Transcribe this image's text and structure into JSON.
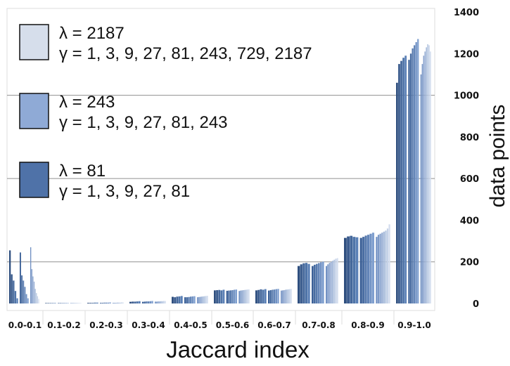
{
  "chart_data": {
    "type": "bar",
    "xlabel": "Jaccard index",
    "ylabel": "data points",
    "ylim": [
      0,
      1400
    ],
    "yticks": [
      "0",
      "200",
      "400",
      "600",
      "800",
      "1000",
      "1200",
      "1400"
    ],
    "y_axis_side": "right",
    "grid": "horizontal",
    "legend_position": "top-left",
    "categories": [
      "0.0-0.1",
      "0.1-0.2",
      "0.2-0.3",
      "0.3-0.4",
      "0.4-0.5",
      "0.5-0.6",
      "0.6-0.7",
      "0.7-0.8",
      "0.8-0.9",
      "0.9-1.0"
    ],
    "series": [
      {
        "name": "λ = 81",
        "subtitle": "γ = 1, 3, 9, 27, 81",
        "color_dark": "#2f4f7f",
        "color_light": "#5a80b6",
        "values": [
          [
            255,
            140,
            110,
            60,
            25
          ],
          [
            2,
            2,
            2,
            2,
            2
          ],
          [
            3,
            3,
            3,
            4,
            4
          ],
          [
            8,
            9,
            9,
            10,
            11
          ],
          [
            32,
            30,
            33,
            34,
            36
          ],
          [
            63,
            64,
            65,
            63,
            66
          ],
          [
            63,
            65,
            68,
            66,
            69
          ],
          [
            180,
            188,
            193,
            195,
            190
          ],
          [
            315,
            322,
            325,
            320,
            318
          ],
          [
            1060,
            1150,
            1165,
            1180,
            1190
          ]
        ]
      },
      {
        "name": "λ = 243",
        "subtitle": "γ = 1, 3, 9, 27, 81, 243",
        "color_dark": "#3a5f96",
        "color_light": "#7f9fcf",
        "values": [
          [
            245,
            135,
            110,
            80,
            45,
            25
          ],
          [
            2,
            2,
            2,
            2,
            2,
            2
          ],
          [
            3,
            3,
            4,
            4,
            4,
            5
          ],
          [
            8,
            9,
            10,
            10,
            11,
            12
          ],
          [
            30,
            30,
            31,
            33,
            34,
            35
          ],
          [
            61,
            62,
            63,
            64,
            66,
            67
          ],
          [
            62,
            64,
            66,
            67,
            69,
            70
          ],
          [
            180,
            186,
            190,
            194,
            198,
            201
          ],
          [
            315,
            320,
            326,
            330,
            335,
            340
          ],
          [
            1170,
            1200,
            1225,
            1240,
            1255,
            1270
          ]
        ]
      },
      {
        "name": "λ = 2187",
        "subtitle": "γ = 1, 3, 9, 27, 81, 243, 729, 2187",
        "color_dark": "#6f8fc2",
        "color_light": "#d3ddee",
        "values": [
          [
            270,
            165,
            130,
            105,
            70,
            50,
            35,
            22
          ],
          [
            2,
            2,
            2,
            2,
            2,
            2,
            2,
            2
          ],
          [
            3,
            3,
            3,
            4,
            4,
            4,
            5,
            5
          ],
          [
            9,
            9,
            10,
            10,
            11,
            11,
            12,
            12
          ],
          [
            30,
            31,
            32,
            33,
            34,
            35,
            36,
            37
          ],
          [
            60,
            62,
            63,
            64,
            65,
            66,
            67,
            68
          ],
          [
            62,
            63,
            64,
            66,
            67,
            68,
            69,
            70
          ],
          [
            180,
            188,
            195,
            200,
            205,
            210,
            215,
            218
          ],
          [
            320,
            330,
            335,
            340,
            345,
            350,
            360,
            380
          ],
          [
            1100,
            1150,
            1190,
            1210,
            1230,
            1245,
            1240,
            1210
          ]
        ]
      }
    ]
  },
  "legend_order": [
    2,
    1,
    0
  ],
  "colors": {
    "grid": "#909090",
    "frame": "#dcdcdc",
    "legend_swatch_border": "#111111"
  }
}
